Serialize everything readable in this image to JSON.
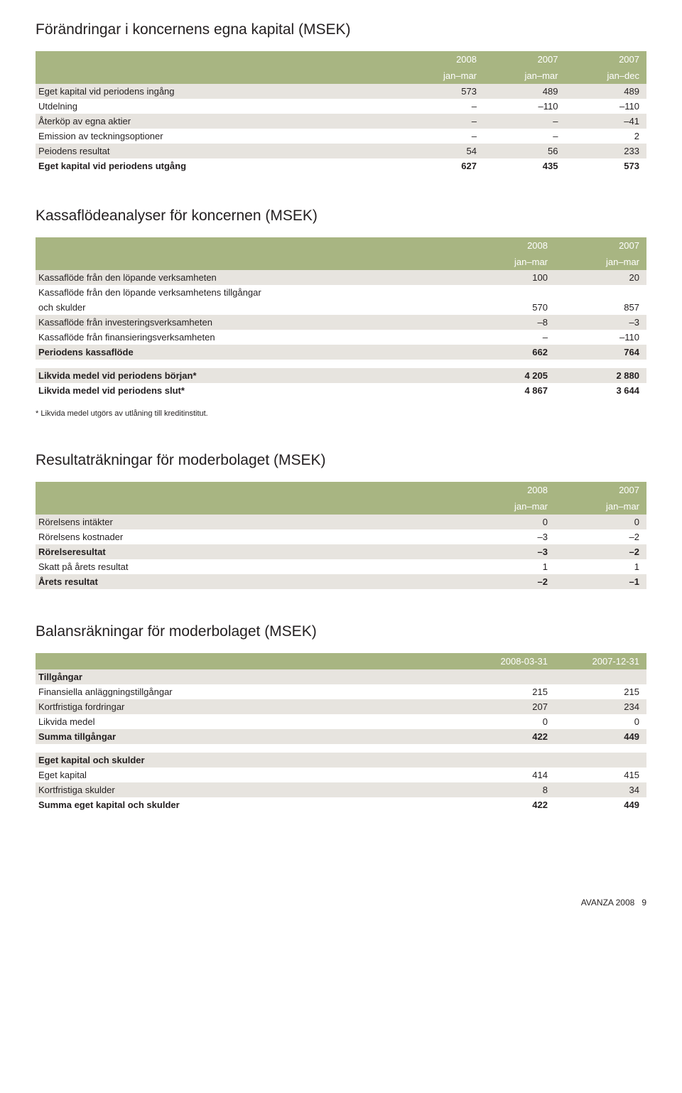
{
  "colors": {
    "header_bg": "#a8b582",
    "header_text": "#ffffff",
    "row_alt_bg": "#e7e4df",
    "text": "#231f20",
    "page_bg": "#ffffff"
  },
  "table1": {
    "title": "Förändringar i koncernens egna kapital (MSEK)",
    "head1": [
      "",
      "2008",
      "2007",
      "2007"
    ],
    "head2": [
      "",
      "jan–mar",
      "jan–mar",
      "jan–dec"
    ],
    "rows": [
      {
        "alt": true,
        "bold": false,
        "c": [
          "Eget kapital vid periodens ingång",
          "573",
          "489",
          "489"
        ]
      },
      {
        "alt": false,
        "bold": false,
        "c": [
          "Utdelning",
          "–",
          "–110",
          "–110"
        ]
      },
      {
        "alt": true,
        "bold": false,
        "c": [
          "Återköp av egna aktier",
          "–",
          "–",
          "–41"
        ]
      },
      {
        "alt": false,
        "bold": false,
        "c": [
          "Emission av teckningsoptioner",
          "–",
          "–",
          "2"
        ]
      },
      {
        "alt": true,
        "bold": false,
        "c": [
          "Peiodens resultat",
          "54",
          "56",
          "233"
        ]
      },
      {
        "alt": false,
        "bold": true,
        "c": [
          "Eget kapital vid periodens utgång",
          "627",
          "435",
          "573"
        ]
      }
    ]
  },
  "table2": {
    "title": "Kassaflödeanalyser för koncernen (MSEK)",
    "head1": [
      "",
      "2008",
      "2007"
    ],
    "head2": [
      "",
      "jan–mar",
      "jan–mar"
    ],
    "rows": [
      {
        "alt": true,
        "bold": false,
        "c": [
          "Kassaflöde från den löpande verksamheten",
          "100",
          "20"
        ]
      },
      {
        "alt": false,
        "bold": false,
        "c": [
          "Kassaflöde från den löpande verksamhetens tillgångar",
          "",
          ""
        ]
      },
      {
        "alt": false,
        "bold": false,
        "c": [
          "och skulder",
          "570",
          "857"
        ]
      },
      {
        "alt": true,
        "bold": false,
        "c": [
          "Kassaflöde från investeringsverksamheten",
          "–8",
          "–3"
        ]
      },
      {
        "alt": false,
        "bold": false,
        "c": [
          "Kassaflöde från finansieringsverksamheten",
          "–",
          "–110"
        ]
      },
      {
        "alt": true,
        "bold": true,
        "c": [
          "Periodens kassaflöde",
          "662",
          "764"
        ]
      }
    ],
    "rows2": [
      {
        "alt": true,
        "bold": true,
        "c": [
          "Likvida medel vid periodens början*",
          "4 205",
          "2 880"
        ]
      },
      {
        "alt": false,
        "bold": true,
        "c": [
          "Likvida medel vid periodens slut*",
          "4 867",
          "3 644"
        ]
      }
    ],
    "footnote": "* Likvida medel utgörs av utlåning till kreditinstitut."
  },
  "table3": {
    "title": "Resultaträkningar för moderbolaget (MSEK)",
    "head1": [
      "",
      "2008",
      "2007"
    ],
    "head2": [
      "",
      "jan–mar",
      "jan–mar"
    ],
    "rows": [
      {
        "alt": true,
        "bold": false,
        "c": [
          "Rörelsens intäkter",
          "0",
          "0"
        ]
      },
      {
        "alt": false,
        "bold": false,
        "c": [
          "Rörelsens kostnader",
          "–3",
          "–2"
        ]
      },
      {
        "alt": true,
        "bold": true,
        "c": [
          "Rörelseresultat",
          "–3",
          "–2"
        ]
      },
      {
        "alt": false,
        "bold": false,
        "c": [
          "Skatt på årets resultat",
          "1",
          "1"
        ]
      },
      {
        "alt": true,
        "bold": true,
        "c": [
          "Årets resultat",
          "–2",
          "–1"
        ]
      }
    ]
  },
  "table4": {
    "title": "Balansräkningar för moderbolaget (MSEK)",
    "head1": [
      "",
      "2008-03-31",
      "2007-12-31"
    ],
    "rowsA": [
      {
        "alt": true,
        "bold": true,
        "c": [
          "Tillgångar",
          "",
          ""
        ]
      },
      {
        "alt": false,
        "bold": false,
        "c": [
          "Finansiella anläggningstillgångar",
          "215",
          "215"
        ]
      },
      {
        "alt": true,
        "bold": false,
        "c": [
          "Kortfristiga fordringar",
          "207",
          "234"
        ]
      },
      {
        "alt": false,
        "bold": false,
        "c": [
          "Likvida medel",
          "0",
          "0"
        ]
      },
      {
        "alt": true,
        "bold": true,
        "c": [
          "Summa tillgångar",
          "422",
          "449"
        ]
      }
    ],
    "rowsB": [
      {
        "alt": true,
        "bold": true,
        "c": [
          "Eget kapital och skulder",
          "",
          ""
        ]
      },
      {
        "alt": false,
        "bold": false,
        "c": [
          "Eget kapital",
          "414",
          "415"
        ]
      },
      {
        "alt": true,
        "bold": false,
        "c": [
          "Kortfristiga skulder",
          "8",
          "34"
        ]
      },
      {
        "alt": false,
        "bold": true,
        "c": [
          "Summa eget kapital och skulder",
          "422",
          "449"
        ]
      }
    ]
  },
  "footer": {
    "brand": "AVANZA 2008",
    "page": "9"
  },
  "col_widths": {
    "three_col": [
      "60%",
      "13.3%",
      "13.3%",
      "13.3%"
    ],
    "two_col": [
      "70%",
      "15%",
      "15%"
    ]
  }
}
